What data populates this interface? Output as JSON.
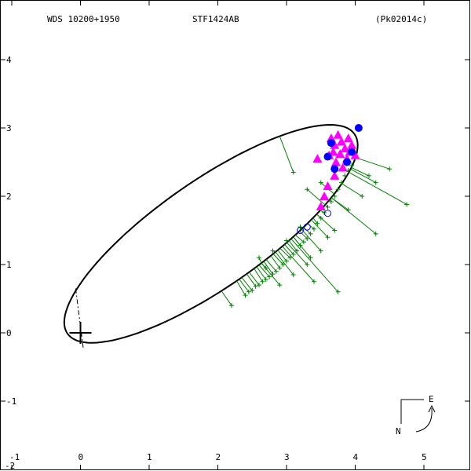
{
  "header": {
    "left": "WDS 10200+1950",
    "center": "STF1424AB",
    "right": "(Pk02014c)"
  },
  "compass": {
    "north": "N",
    "east": "E"
  },
  "corner_label": "-2",
  "chart_data": {
    "type": "scatter",
    "title": "",
    "xlabel": "",
    "ylabel": "",
    "xlim": [
      -1.1,
      5.7
    ],
    "ylim": [
      -2.0,
      4.8
    ],
    "x_ticks": [
      -1,
      0,
      1,
      2,
      3,
      4,
      5
    ],
    "y_ticks": [
      -1,
      0,
      1,
      2,
      3,
      4
    ],
    "grid": false,
    "primary_star": [
      0,
      0
    ],
    "orbit": {
      "description": "apparent orbit ellipse",
      "center": [
        1.9,
        1.45
      ],
      "semi_axes": [
        2.55,
        0.78
      ],
      "rotation_deg": 35
    },
    "node_line": [
      [
        -0.07,
        0.65
      ],
      [
        0.04,
        -0.22
      ]
    ],
    "series": [
      {
        "marker": "plus",
        "color": "#008000",
        "points": [
          [
            2.4,
            0.55
          ],
          [
            2.45,
            0.6
          ],
          [
            2.5,
            0.62
          ],
          [
            2.55,
            0.68
          ],
          [
            2.6,
            0.7
          ],
          [
            2.65,
            0.75
          ],
          [
            2.7,
            0.78
          ],
          [
            2.75,
            0.82
          ],
          [
            2.8,
            0.86
          ],
          [
            2.85,
            0.9
          ],
          [
            2.9,
            0.95
          ],
          [
            2.95,
            1.0
          ],
          [
            3.0,
            1.05
          ],
          [
            3.05,
            1.1
          ],
          [
            3.1,
            1.15
          ],
          [
            3.15,
            1.2
          ],
          [
            3.2,
            1.28
          ],
          [
            3.25,
            1.33
          ],
          [
            3.3,
            1.38
          ],
          [
            3.35,
            1.45
          ],
          [
            3.4,
            1.52
          ],
          [
            3.45,
            1.6
          ],
          [
            3.5,
            1.68
          ],
          [
            3.55,
            1.76
          ],
          [
            3.6,
            1.84
          ],
          [
            3.65,
            1.92
          ],
          [
            3.7,
            2.0
          ],
          [
            3.75,
            2.1
          ],
          [
            3.8,
            2.2
          ],
          [
            3.85,
            2.3
          ],
          [
            3.9,
            2.38
          ],
          [
            3.95,
            2.45
          ],
          [
            4.0,
            2.55
          ],
          [
            3.3,
            1.0
          ],
          [
            3.5,
            1.2
          ],
          [
            3.7,
            1.5
          ],
          [
            3.9,
            1.8
          ],
          [
            4.1,
            2.0
          ],
          [
            4.3,
            2.2
          ],
          [
            4.5,
            2.4
          ],
          [
            4.3,
            1.45
          ],
          [
            3.75,
            0.6
          ],
          [
            3.4,
            0.75
          ],
          [
            2.2,
            0.4
          ],
          [
            2.9,
            0.7
          ],
          [
            3.1,
            0.85
          ],
          [
            2.6,
            1.1
          ],
          [
            2.8,
            1.2
          ],
          [
            3.0,
            1.35
          ],
          [
            3.2,
            1.55
          ],
          [
            3.1,
            2.35
          ],
          [
            3.3,
            2.1
          ],
          [
            3.5,
            2.2
          ],
          [
            4.75,
            1.88
          ],
          [
            3.8,
            2.4
          ],
          [
            4.2,
            2.3
          ],
          [
            3.6,
            1.4
          ],
          [
            3.35,
            1.1
          ],
          [
            2.7,
            0.95
          ]
        ]
      },
      {
        "marker": "triangle",
        "color": "#ff00ff",
        "points": [
          [
            3.65,
            2.85
          ],
          [
            3.7,
            2.75
          ],
          [
            3.75,
            2.9
          ],
          [
            3.8,
            2.8
          ],
          [
            3.85,
            2.7
          ],
          [
            3.9,
            2.85
          ],
          [
            3.95,
            2.75
          ],
          [
            3.62,
            2.6
          ],
          [
            3.78,
            2.62
          ],
          [
            3.88,
            2.55
          ],
          [
            4.0,
            2.6
          ],
          [
            3.45,
            2.55
          ],
          [
            3.72,
            2.5
          ],
          [
            3.82,
            2.42
          ],
          [
            3.7,
            2.3
          ],
          [
            3.6,
            2.15
          ],
          [
            3.55,
            2.0
          ],
          [
            3.5,
            1.85
          ],
          [
            3.68,
            2.65
          ],
          [
            3.92,
            2.65
          ]
        ]
      },
      {
        "marker": "circle",
        "color": "#0000ff",
        "points": [
          [
            4.05,
            3.0
          ],
          [
            3.65,
            2.78
          ],
          [
            3.6,
            2.58
          ],
          [
            3.95,
            2.65
          ],
          [
            3.88,
            2.5
          ],
          [
            3.7,
            2.4
          ]
        ]
      },
      {
        "marker": "open-circle",
        "color": "#0000ff",
        "points": [
          [
            3.6,
            1.75
          ],
          [
            3.3,
            1.55
          ],
          [
            3.2,
            1.5
          ]
        ]
      }
    ]
  }
}
